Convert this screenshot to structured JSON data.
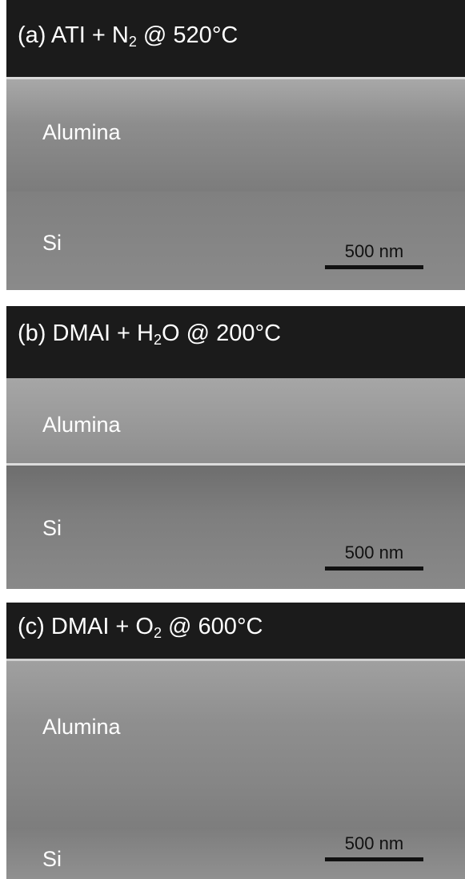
{
  "panels": [
    {
      "title": {
        "prefix": "(a) ATI + N",
        "sub": "2",
        "suffix": " @ 520°C"
      },
      "film_label": "Alumina",
      "substrate_label": "Si",
      "scale_bar": "500 nm"
    },
    {
      "title": {
        "prefix": "(b) DMAI + H",
        "sub": "2",
        "suffix": "O @ 200°C"
      },
      "film_label": "Alumina",
      "substrate_label": "Si",
      "scale_bar": "500 nm"
    },
    {
      "title": {
        "prefix": "(c) DMAI + O",
        "sub": "2",
        "suffix": " @ 600°C"
      },
      "film_label": "Alumina",
      "substrate_label": "Si",
      "scale_bar": "500 nm"
    }
  ]
}
